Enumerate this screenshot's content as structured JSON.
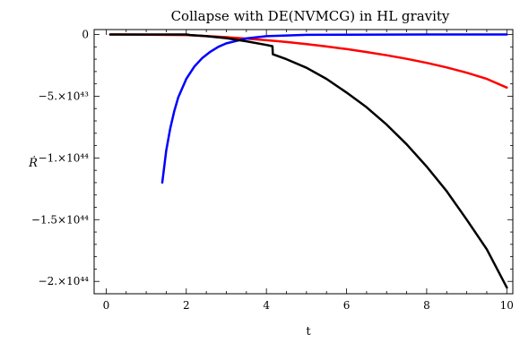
{
  "chart_data": {
    "type": "line",
    "title": "Collapse with DE(NVMCG) in HL gravity",
    "xlabel": "t",
    "ylabel": "Ṙ",
    "xlim": [
      -0.3,
      10.15
    ],
    "ylim": [
      -2.1e+44,
      4e+42
    ],
    "x_ticks": [
      {
        "value": 0,
        "label": "0"
      },
      {
        "value": 2,
        "label": "2"
      },
      {
        "value": 4,
        "label": "4"
      },
      {
        "value": 6,
        "label": "6"
      },
      {
        "value": 8,
        "label": "8"
      },
      {
        "value": 10,
        "label": "10"
      }
    ],
    "y_ticks": [
      {
        "value": 0,
        "label": "0"
      },
      {
        "value": -5e+43,
        "label": "−5.×10⁴³"
      },
      {
        "value": -1e+44,
        "label": "−1.×10⁴⁴"
      },
      {
        "value": -1.5e+44,
        "label": "−1.5×10⁴⁴"
      },
      {
        "value": -2e+44,
        "label": "−2.×10⁴⁴"
      }
    ],
    "grid": false,
    "series": [
      {
        "color": "#ff0000",
        "x": [
          0.1,
          1,
          2,
          2.5,
          3,
          3.5,
          4,
          4.5,
          5,
          5.5,
          6,
          6.5,
          7,
          7.5,
          8,
          8.5,
          9,
          9.5,
          10
        ],
        "y": [
          0,
          -1e+41,
          -4e+41,
          -1.2e+42,
          -2.2e+42,
          -3.3e+42,
          -4.6e+42,
          -6.1e+42,
          -7.8e+42,
          -9.7e+42,
          -1.18e+43,
          -1.42e+43,
          -1.68e+43,
          -1.97e+43,
          -2.3e+43,
          -2.67e+43,
          -3.1e+43,
          -3.6e+43,
          -4.3e+43
        ]
      },
      {
        "color": "#0000ff",
        "x": [
          1.4,
          1.5,
          1.6,
          1.7,
          1.8,
          2.0,
          2.2,
          2.4,
          2.6,
          2.8,
          3.0,
          3.5,
          4.0,
          5.0,
          6.0,
          8.0,
          10.0
        ],
        "y": [
          -1.2e+44,
          -9.4e+43,
          -7.6e+43,
          -6.2e+43,
          -5.1e+43,
          -3.6e+43,
          -2.6e+43,
          -1.9e+43,
          -1.4e+43,
          -1e+43,
          -7.2e+42,
          -3.2e+42,
          -1.4e+42,
          -3e+41,
          -1e+41,
          0,
          0
        ]
      },
      {
        "color": "#000000",
        "x": [
          0.1,
          1,
          2,
          2.1,
          2.5,
          3,
          3.5,
          4,
          4.15,
          4.16,
          4.5,
          5,
          5.5,
          6,
          6.5,
          7,
          7.5,
          8,
          8.5,
          9,
          9.5,
          10
        ],
        "y": [
          0,
          0,
          0,
          -4e+41,
          -1.4e+42,
          -3e+42,
          -5.5e+42,
          -8.5e+42,
          -9.5e+42,
          -1.6e+43,
          -2e+43,
          -2.7e+43,
          -3.6e+43,
          -4.7e+43,
          -5.9e+43,
          -7.3e+43,
          -8.9e+43,
          -1.07e+44,
          -1.27e+44,
          -1.5e+44,
          -1.74e+44,
          -2.05e+44
        ]
      }
    ]
  }
}
